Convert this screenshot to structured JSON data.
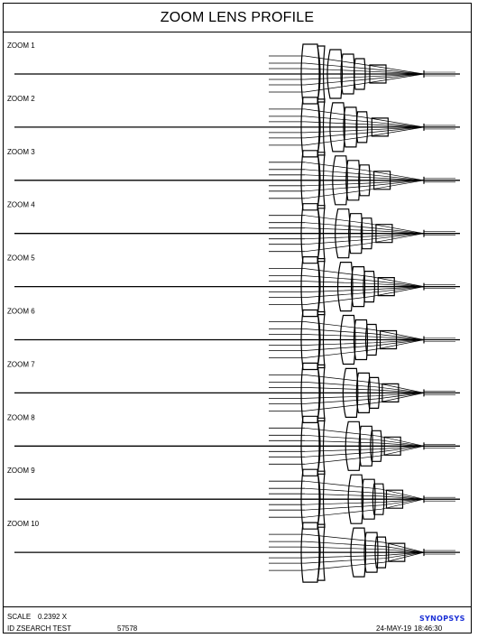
{
  "title": "ZOOM LENS PROFILE",
  "zoom_positions": [
    {
      "label": "ZOOM  1"
    },
    {
      "label": "ZOOM  2"
    },
    {
      "label": "ZOOM  3"
    },
    {
      "label": "ZOOM  4"
    },
    {
      "label": "ZOOM  5"
    },
    {
      "label": "ZOOM  6"
    },
    {
      "label": "ZOOM  7"
    },
    {
      "label": "ZOOM  8"
    },
    {
      "label": "ZOOM  9"
    },
    {
      "label": "ZOOM  10"
    }
  ],
  "footer": {
    "scale_label": "SCALE",
    "scale_value": "0.2392 X",
    "id_text": "ID ZSEARCH TEST",
    "id_number": "57578",
    "date": "24-MAY-19",
    "time": "18:46:30",
    "brand": "SYNOPSYS"
  },
  "colors": {
    "line": "#000000",
    "brand": "#1a2fd6"
  }
}
